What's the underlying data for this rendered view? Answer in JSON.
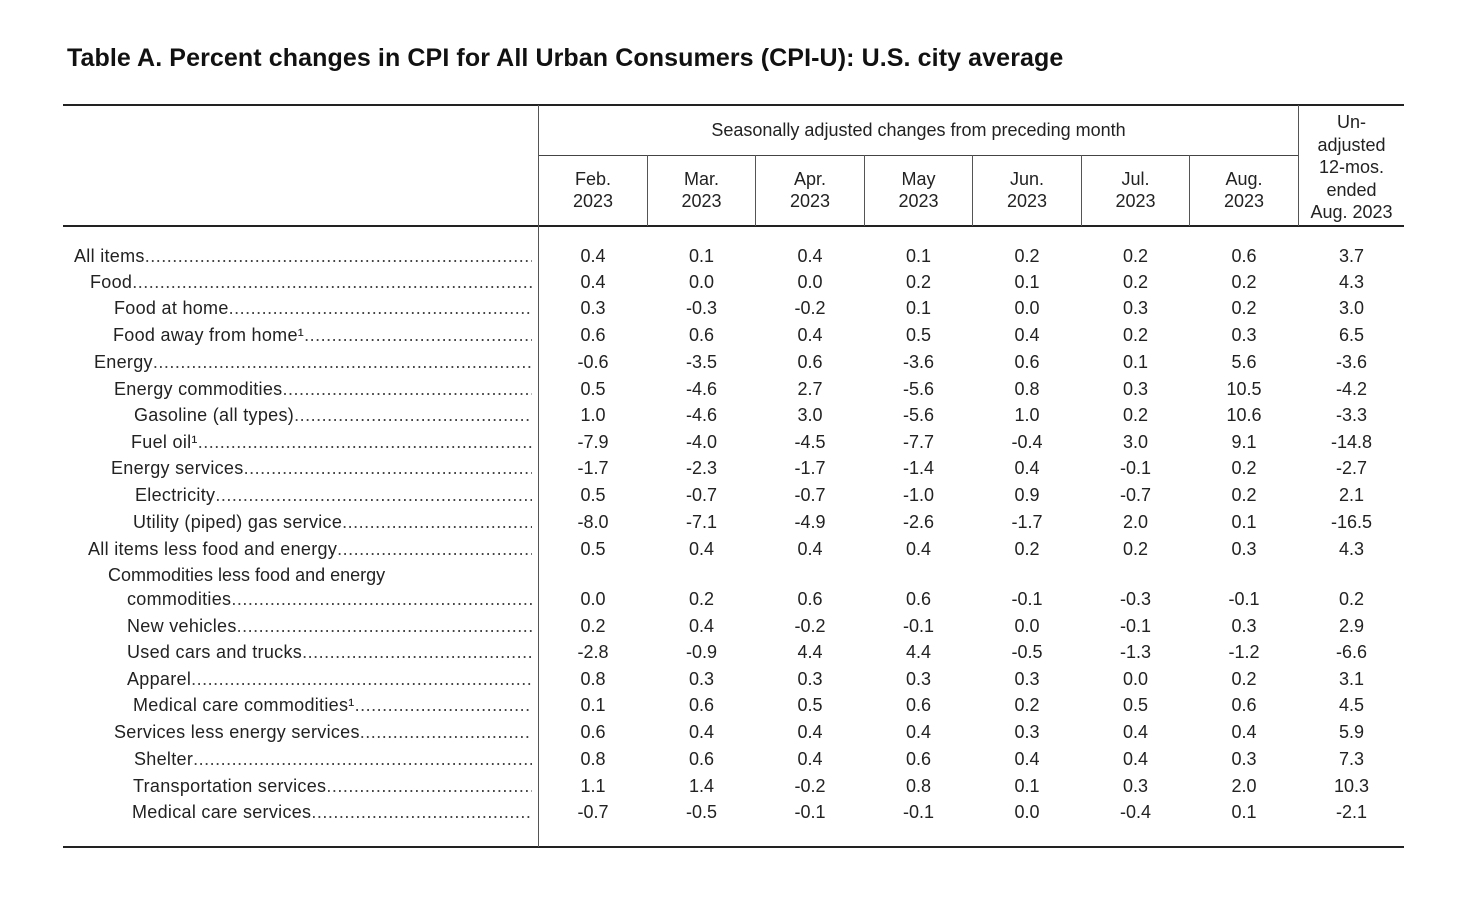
{
  "title": "Table A. Percent changes in CPI for All Urban Consumers (CPI-U): U.S. city average",
  "header": {
    "group_label": "Seasonally adjusted changes from preceding month",
    "months": [
      {
        "month": "Feb.",
        "year": "2023"
      },
      {
        "month": "Mar.",
        "year": "2023"
      },
      {
        "month": "Apr.",
        "year": "2023"
      },
      {
        "month": "May",
        "year": "2023"
      },
      {
        "month": "Jun.",
        "year": "2023"
      },
      {
        "month": "Jul.",
        "year": "2023"
      },
      {
        "month": "Aug.",
        "year": "2023"
      }
    ],
    "unadjusted": [
      "Un-",
      "adjusted",
      "12-mos.",
      "ended",
      "Aug. 2023"
    ]
  },
  "rows": [
    {
      "label": "All items",
      "values": [
        "0.4",
        "0.1",
        "0.4",
        "0.1",
        "0.2",
        "0.2",
        "0.6",
        "3.7"
      ]
    },
    {
      "label": "Food",
      "values": [
        "0.4",
        "0.0",
        "0.0",
        "0.2",
        "0.1",
        "0.2",
        "0.2",
        "4.3"
      ]
    },
    {
      "label": "Food at home",
      "values": [
        "0.3",
        "-0.3",
        "-0.2",
        "0.1",
        "0.0",
        "0.3",
        "0.2",
        "3.0"
      ]
    },
    {
      "label": "Food away from home¹",
      "values": [
        "0.6",
        "0.6",
        "0.4",
        "0.5",
        "0.4",
        "0.2",
        "0.3",
        "6.5"
      ]
    },
    {
      "label": "Energy",
      "values": [
        "-0.6",
        "-3.5",
        "0.6",
        "-3.6",
        "0.6",
        "0.1",
        "5.6",
        "-3.6"
      ]
    },
    {
      "label": "Energy commodities",
      "values": [
        "0.5",
        "-4.6",
        "2.7",
        "-5.6",
        "0.8",
        "0.3",
        "10.5",
        "-4.2"
      ]
    },
    {
      "label": "Gasoline (all types)",
      "values": [
        "1.0",
        "-4.6",
        "3.0",
        "-5.6",
        "1.0",
        "0.2",
        "10.6",
        "-3.3"
      ]
    },
    {
      "label": "Fuel oil¹",
      "values": [
        "-7.9",
        "-4.0",
        "-4.5",
        "-7.7",
        "-0.4",
        "3.0",
        "9.1",
        "-14.8"
      ]
    },
    {
      "label": "Energy services",
      "values": [
        "-1.7",
        "-2.3",
        "-1.7",
        "-1.4",
        "0.4",
        "-0.1",
        "0.2",
        "-2.7"
      ]
    },
    {
      "label": "Electricity",
      "values": [
        "0.5",
        "-0.7",
        "-0.7",
        "-1.0",
        "0.9",
        "-0.7",
        "0.2",
        "2.1"
      ]
    },
    {
      "label": "Utility (piped) gas service",
      "values": [
        "-8.0",
        "-7.1",
        "-4.9",
        "-2.6",
        "-1.7",
        "2.0",
        "0.1",
        "-16.5"
      ]
    },
    {
      "label": "All items less food and energy",
      "values": [
        "0.5",
        "0.4",
        "0.4",
        "0.4",
        "0.2",
        "0.2",
        "0.3",
        "4.3"
      ]
    },
    {
      "label_line1": "Commodities less food and energy",
      "label": "commodities",
      "values": [
        "0.0",
        "0.2",
        "0.6",
        "0.6",
        "-0.1",
        "-0.3",
        "-0.1",
        "0.2"
      ]
    },
    {
      "label": "New vehicles",
      "values": [
        "0.2",
        "0.4",
        "-0.2",
        "-0.1",
        "0.0",
        "-0.1",
        "0.3",
        "2.9"
      ]
    },
    {
      "label": "Used cars and trucks",
      "values": [
        "-2.8",
        "-0.9",
        "4.4",
        "4.4",
        "-0.5",
        "-1.3",
        "-1.2",
        "-6.6"
      ]
    },
    {
      "label": "Apparel",
      "values": [
        "0.8",
        "0.3",
        "0.3",
        "0.3",
        "0.3",
        "0.0",
        "0.2",
        "3.1"
      ]
    },
    {
      "label": "Medical care commodities¹",
      "values": [
        "0.1",
        "0.6",
        "0.5",
        "0.6",
        "0.2",
        "0.5",
        "0.6",
        "4.5"
      ]
    },
    {
      "label": "Services less energy services",
      "values": [
        "0.6",
        "0.4",
        "0.4",
        "0.4",
        "0.3",
        "0.4",
        "0.4",
        "5.9"
      ]
    },
    {
      "label": "Shelter",
      "values": [
        "0.8",
        "0.6",
        "0.4",
        "0.6",
        "0.4",
        "0.4",
        "0.3",
        "7.3"
      ]
    },
    {
      "label": "Transportation services",
      "values": [
        "1.1",
        "1.4",
        "-0.2",
        "0.8",
        "0.1",
        "0.3",
        "2.0",
        "10.3"
      ]
    },
    {
      "label": "Medical care services",
      "values": [
        "-0.7",
        "-0.5",
        "-0.1",
        "-0.1",
        "0.0",
        "-0.4",
        "0.1",
        "-2.1"
      ]
    }
  ]
}
